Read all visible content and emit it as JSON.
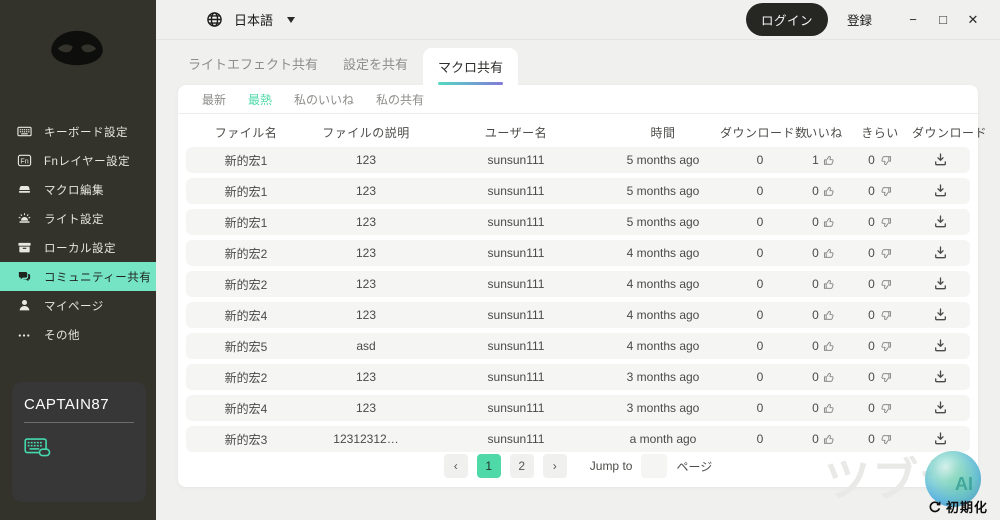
{
  "sidebar": {
    "items": [
      {
        "id": "keyboard-settings",
        "icon": "keyboard",
        "label": "キーボード設定",
        "active": false
      },
      {
        "id": "fn-layer-settings",
        "icon": "fn",
        "label": "Fnレイヤー設定",
        "active": false
      },
      {
        "id": "macro-edit",
        "icon": "macro",
        "label": "マクロ編集",
        "active": false
      },
      {
        "id": "light-settings",
        "icon": "light",
        "label": "ライト設定",
        "active": false
      },
      {
        "id": "local-settings",
        "icon": "local",
        "label": "ローカル設定",
        "active": false
      },
      {
        "id": "community-share",
        "icon": "community",
        "label": "コミュニティー共有",
        "active": true
      },
      {
        "id": "my-page",
        "icon": "user",
        "label": "マイページ",
        "active": false
      },
      {
        "id": "others",
        "icon": "more",
        "label": "その他",
        "active": false
      }
    ],
    "profile_name": "CAPTAIN87"
  },
  "topbar": {
    "language": "日本語",
    "login": "ログイン",
    "register": "登録",
    "window_controls": {
      "minimize": "−",
      "maximize": "□",
      "close": "✕"
    }
  },
  "tabs": {
    "items": [
      "ライトエフェクト共有",
      "設定を共有",
      "マクロ共有"
    ],
    "active_index": 2
  },
  "subtabs": {
    "items": [
      "最新",
      "最熱",
      "私のいいね",
      "私の共有"
    ],
    "active_index": 1
  },
  "table": {
    "headers": [
      "ファイル名",
      "ファイルの説明",
      "ユーザー名",
      "時間",
      "ダウンロード数",
      "いいね",
      "きらい",
      "ダウンロード"
    ],
    "rows": [
      {
        "name": "新的宏1",
        "desc": "123",
        "user": "sunsun111",
        "time": "5 months ago",
        "downloads": "0",
        "likes": "1",
        "dislikes": "0"
      },
      {
        "name": "新的宏1",
        "desc": "123",
        "user": "sunsun111",
        "time": "5 months ago",
        "downloads": "0",
        "likes": "0",
        "dislikes": "0"
      },
      {
        "name": "新的宏1",
        "desc": "123",
        "user": "sunsun111",
        "time": "5 months ago",
        "downloads": "0",
        "likes": "0",
        "dislikes": "0"
      },
      {
        "name": "新的宏2",
        "desc": "123",
        "user": "sunsun111",
        "time": "4 months ago",
        "downloads": "0",
        "likes": "0",
        "dislikes": "0"
      },
      {
        "name": "新的宏2",
        "desc": "123",
        "user": "sunsun111",
        "time": "4 months ago",
        "downloads": "0",
        "likes": "0",
        "dislikes": "0"
      },
      {
        "name": "新的宏4",
        "desc": "123",
        "user": "sunsun111",
        "time": "4 months ago",
        "downloads": "0",
        "likes": "0",
        "dislikes": "0"
      },
      {
        "name": "新的宏5",
        "desc": "asd",
        "user": "sunsun111",
        "time": "4 months ago",
        "downloads": "0",
        "likes": "0",
        "dislikes": "0"
      },
      {
        "name": "新的宏2",
        "desc": "123",
        "user": "sunsun111",
        "time": "3 months ago",
        "downloads": "0",
        "likes": "0",
        "dislikes": "0"
      },
      {
        "name": "新的宏4",
        "desc": "123",
        "user": "sunsun111",
        "time": "3 months ago",
        "downloads": "0",
        "likes": "0",
        "dislikes": "0"
      },
      {
        "name": "新的宏3",
        "desc": "12312312…",
        "user": "sunsun111",
        "time": "a month ago",
        "downloads": "0",
        "likes": "0",
        "dislikes": "0"
      }
    ]
  },
  "pagination": {
    "prev_icon": "‹",
    "next_icon": "›",
    "pages": [
      "1",
      "2"
    ],
    "active_page": "1",
    "jump_label": "Jump to",
    "jump_value": "",
    "page_unit": "ページ"
  },
  "footer": {
    "reset_label": "初期化"
  },
  "watermark": {
    "text": "ツブヤ",
    "sphere_text": "AI"
  },
  "colors": {
    "accent_teal": "#4fd9a8",
    "sidebar_active": "#74e4c4",
    "tab_underline_from": "#55d9c2",
    "tab_underline_to": "#8279d9"
  }
}
